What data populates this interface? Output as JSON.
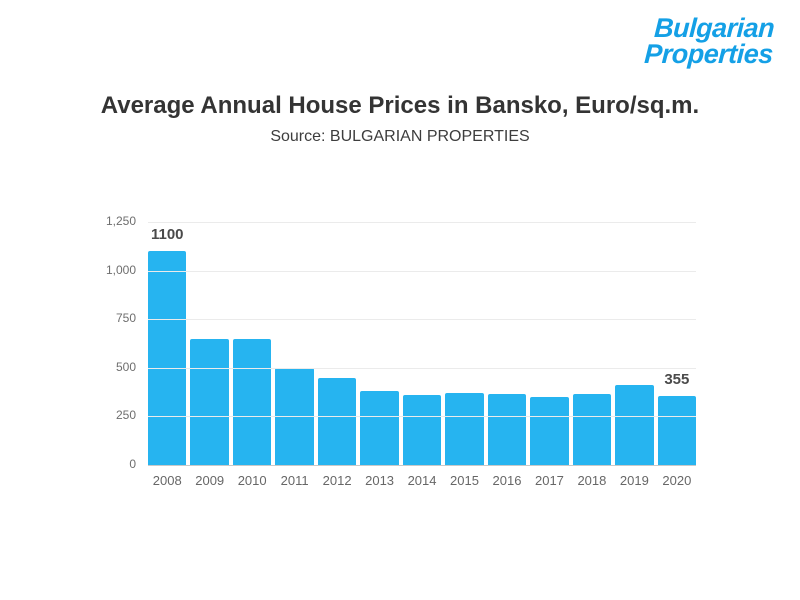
{
  "logo": {
    "line1": "Bulgarian",
    "line2": "Properties",
    "color": "#14a0e6"
  },
  "chart_data": {
    "type": "bar",
    "title": "Average Annual House Prices in Bansko, Euro/sq.m.",
    "subtitle": "Source: BULGARIAN PROPERTIES",
    "categories": [
      "2008",
      "2009",
      "2010",
      "2011",
      "2012",
      "2013",
      "2014",
      "2015",
      "2016",
      "2017",
      "2018",
      "2019",
      "2020"
    ],
    "values": [
      1100,
      650,
      650,
      500,
      450,
      380,
      360,
      370,
      365,
      350,
      365,
      410,
      355
    ],
    "data_labels": {
      "2008": "1100",
      "2020": "355"
    },
    "bar_color": "#26b4f0",
    "ylim": [
      0,
      1250
    ],
    "yticks": [
      0,
      250,
      500,
      750,
      1000,
      1250
    ],
    "ytick_labels": [
      "0",
      "250",
      "500",
      "750",
      "1,000",
      "1,250"
    ],
    "grid": true,
    "legend": "none",
    "xlabel": "",
    "ylabel": ""
  }
}
